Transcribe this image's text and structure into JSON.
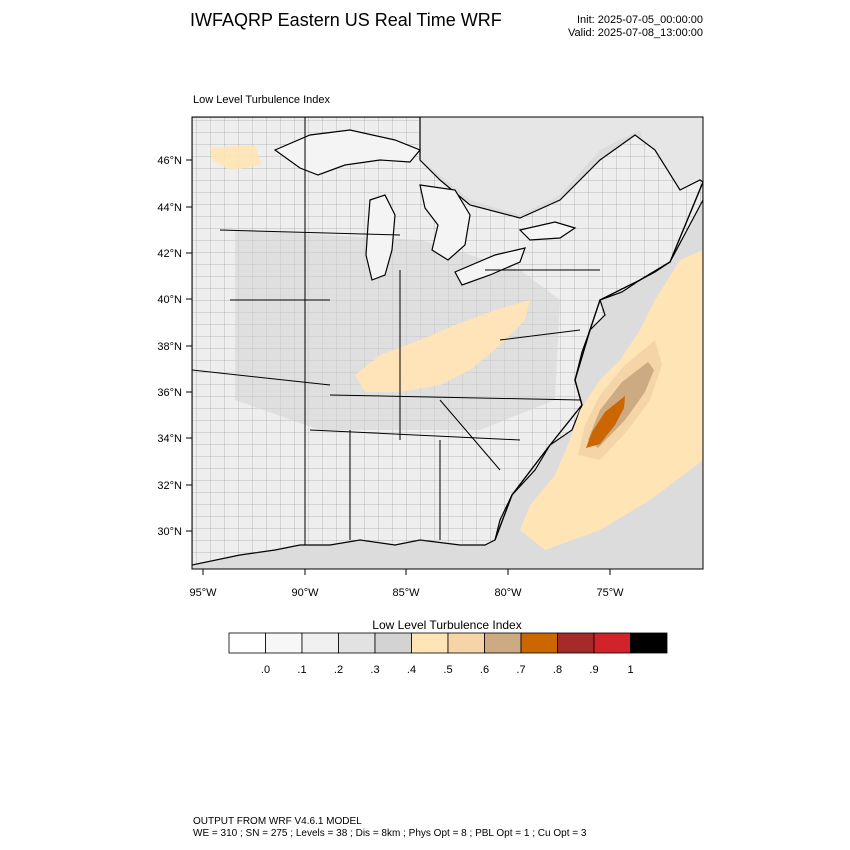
{
  "header": {
    "title": "IWFAQRP Eastern US Real Time WRF",
    "init": "Init: 2025-07-05_00:00:00",
    "valid": "Valid: 2025-07-08_13:00:00"
  },
  "map": {
    "subtitle": "Low Level Turbulence Index",
    "lat_labels": [
      "46°N",
      "44°N",
      "42°N",
      "40°N",
      "38°N",
      "36°N",
      "34°N",
      "32°N",
      "30°N"
    ],
    "lon_labels": [
      "95°W",
      "90°W",
      "85°W",
      "80°W",
      "75°W"
    ],
    "colors": {
      "background": "#f2f2f2",
      "water": "#dcdcdc",
      "land_boundary": "#000000",
      "county_lines": "#555555"
    }
  },
  "colorbar": {
    "title": "Low Level Turbulence Index",
    "labels": [
      ".0",
      ".1",
      ".2",
      ".3",
      ".4",
      ".5",
      ".6",
      ".7",
      ".8",
      ".9",
      "1"
    ],
    "colors": [
      "#ffffff",
      "#f7f7f7",
      "#f0f0f0",
      "#e2e2e2",
      "#d3d3d3",
      "#ffe4b5",
      "#f5d5a8",
      "#ccaa82",
      "#cc6600",
      "#a52a2a",
      "#d2222a",
      "#000000"
    ]
  },
  "footer": {
    "line1": "OUTPUT FROM WRF V4.6.1 MODEL",
    "line2": "WE = 310 ; SN = 275 ; Levels = 38 ; Dis = 8km ; Phys Opt = 8 ; PBL Opt = 1 ; Cu Opt = 3"
  }
}
